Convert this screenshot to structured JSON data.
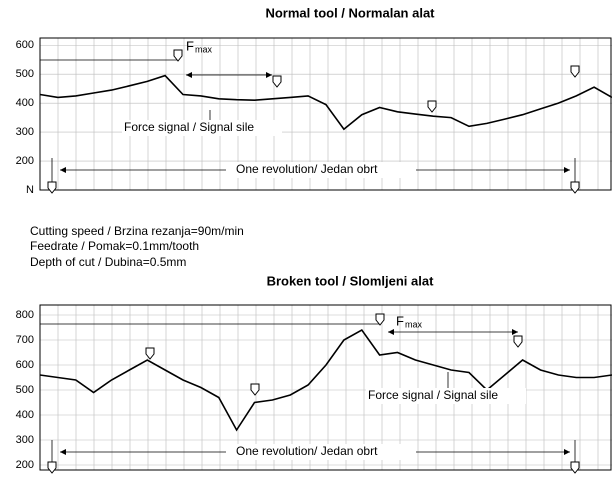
{
  "chart_data": [
    {
      "type": "line",
      "title": "Normal tool / Normalan alat",
      "color": "#000000",
      "values": [
        430,
        420,
        425,
        435,
        445,
        460,
        475,
        495,
        430,
        425,
        415,
        412,
        410,
        415,
        420,
        425,
        395,
        310,
        360,
        385,
        370,
        362,
        355,
        350,
        320,
        330,
        345,
        360,
        380,
        400,
        425,
        455,
        420
      ],
      "ylim": [
        100,
        625
      ],
      "yticks": [
        600,
        500,
        400,
        300,
        200,
        {
          "value": 100,
          "label": "N"
        }
      ],
      "grid": true,
      "annotations": [
        "F",
        "max",
        "Force signal / Signal sile",
        "One revolution/ Jedan obrt"
      ]
    },
    {
      "type": "line",
      "title": "Broken tool / Slomljeni alat",
      "color": "#000000",
      "values": [
        560,
        550,
        540,
        490,
        540,
        580,
        620,
        580,
        540,
        510,
        470,
        340,
        450,
        460,
        480,
        520,
        600,
        700,
        740,
        640,
        650,
        620,
        600,
        580,
        570,
        500,
        560,
        620,
        580,
        560,
        550,
        550,
        560
      ],
      "ylim": [
        180,
        840
      ],
      "yticks": [
        800,
        700,
        600,
        500,
        400,
        300,
        200
      ],
      "grid": true,
      "annotations": [
        "F",
        "max",
        "Force signal / Signal sile",
        "One revolution/ Jedan obrt"
      ]
    }
  ],
  "cutting_conditions": [
    "Cutting speed / Brzina rezanja=90m/min",
    "Feedrate / Pomak=0.1mm/tooth",
    "Depth of cut / Dubina=0.5mm"
  ]
}
